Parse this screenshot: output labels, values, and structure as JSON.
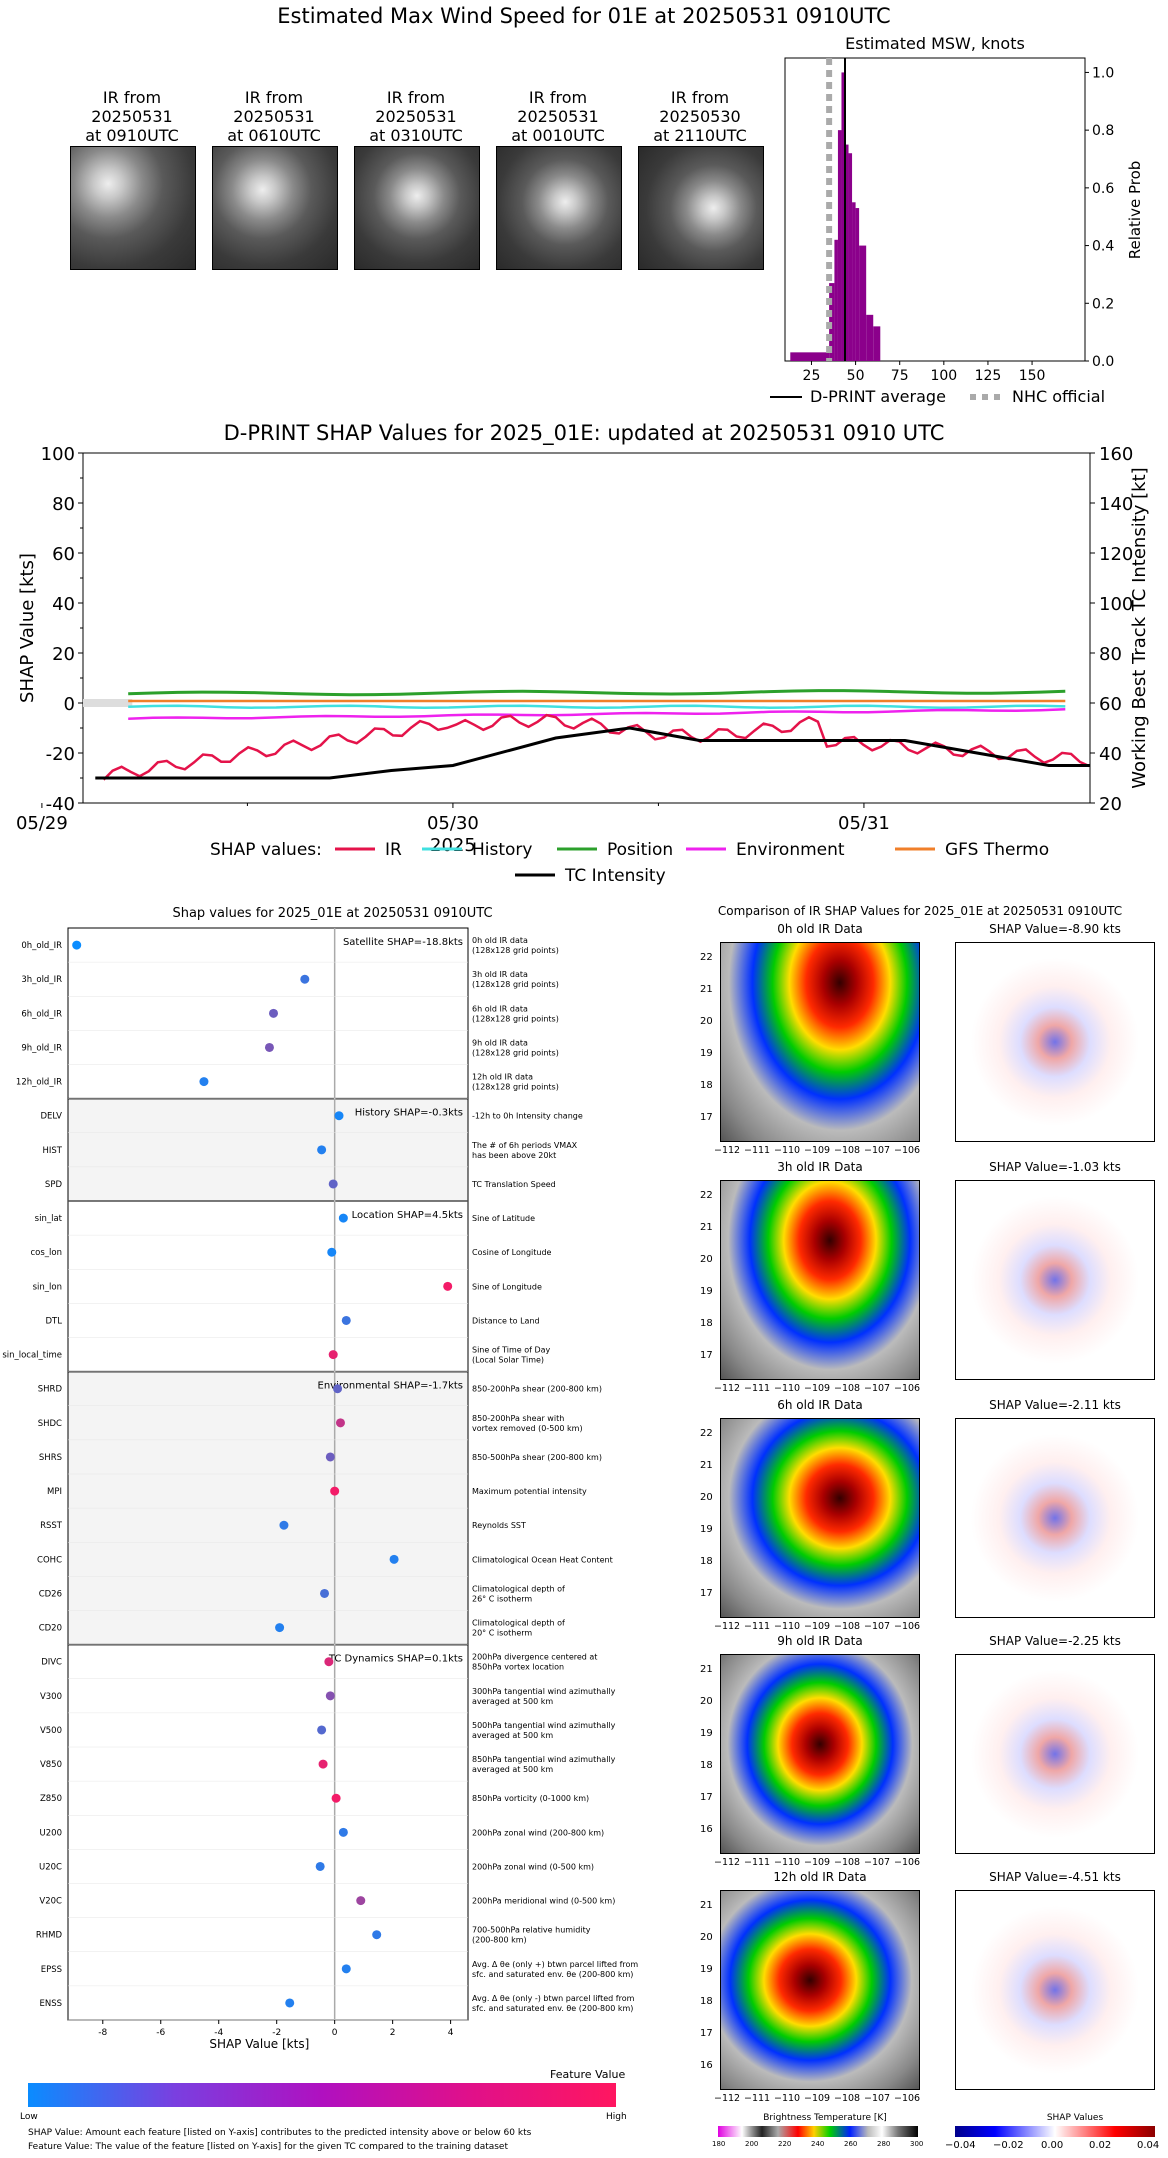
{
  "page_title": "Estimated Max Wind Speed for 01E at 20250531 0910UTC",
  "ir_thumbs": [
    {
      "line1": "IR from",
      "line2": "20250531",
      "line3": "at 0910UTC"
    },
    {
      "line1": "IR from",
      "line2": "20250531",
      "line3": "at 0610UTC"
    },
    {
      "line1": "IR from",
      "line2": "20250531",
      "line3": "at 0310UTC"
    },
    {
      "line1": "IR from",
      "line2": "20250531",
      "line3": "at 0010UTC"
    },
    {
      "line1": "IR from",
      "line2": "20250530",
      "line3": "at 2110UTC"
    }
  ],
  "msw": {
    "title": "Estimated MSW, knots",
    "ylabel": "Relative Prob",
    "xticks": [
      "25",
      "50",
      "75",
      "100",
      "125",
      "150"
    ],
    "yticks": [
      "0.0",
      "0.2",
      "0.4",
      "0.6",
      "0.8",
      "1.0"
    ],
    "legend_avg": "D-PRINT average",
    "legend_nhc": "NHC official",
    "colors": {
      "bars": "#8b008b",
      "avg": "#000000",
      "nhc": "#aaaaaa"
    }
  },
  "shap_ts": {
    "title": "D-PRINT SHAP Values for 2025_01E: updated at 20250531 0910 UTC",
    "ylabel_left": "SHAP Value [kts]",
    "ylabel_right": "Working Best Track TC Intensity [kt]",
    "xlabel": "2025",
    "xticks": [
      "05/29",
      "05/30",
      "05/31"
    ],
    "yticks_left": [
      "-40",
      "-20",
      "0",
      "20",
      "40",
      "60",
      "80",
      "100"
    ],
    "yticks_right": [
      "20",
      "40",
      "60",
      "80",
      "100",
      "120",
      "140",
      "160"
    ],
    "legend_heading": "SHAP values:",
    "legend": [
      "IR",
      "History",
      "Position",
      "Environment",
      "GFS Thermo",
      "TC Intensity"
    ],
    "colors": {
      "IR": "#e4134a",
      "History": "#40e0e0",
      "Position": "#2ca02c",
      "Environment": "#ee22ee",
      "GFS Thermo": "#f07f2a",
      "TC Intensity": "#000000"
    }
  },
  "feature_panel": {
    "title": "Shap values for 2025_01E at 20250531 0910UTC",
    "xlabel": "SHAP Value [kts]",
    "xticks": [
      "-8",
      "-6",
      "-4",
      "-2",
      "0",
      "2",
      "4"
    ],
    "groups": [
      {
        "label": "Satellite SHAP=-18.8kts"
      },
      {
        "label": "History SHAP=-0.3kts"
      },
      {
        "label": "Location SHAP=4.5kts"
      },
      {
        "label": "Environmental SHAP=-1.7kts"
      },
      {
        "label": "TC Dynamics SHAP=0.1kts"
      }
    ],
    "features": [
      {
        "name": "0h_old_IR",
        "desc1": "0h old IR data",
        "desc2": "(128x128 grid points)",
        "shap": -8.9,
        "fv": 0.0
      },
      {
        "name": "3h_old_IR",
        "desc1": "3h old IR data",
        "desc2": "(128x128 grid points)",
        "shap": -1.03,
        "fv": 0.2
      },
      {
        "name": "6h_old_IR",
        "desc1": "6h old IR data",
        "desc2": "(128x128 grid points)",
        "shap": -2.11,
        "fv": 0.4
      },
      {
        "name": "9h_old_IR",
        "desc1": "9h old IR data",
        "desc2": "(128x128 grid points)",
        "shap": -2.25,
        "fv": 0.45
      },
      {
        "name": "12h_old_IR",
        "desc1": "12h old IR data",
        "desc2": "(128x128 grid points)",
        "shap": -4.51,
        "fv": 0.1
      },
      {
        "name": "DELV",
        "desc1": "-12h to 0h Intensity change",
        "desc2": "",
        "shap": 0.15,
        "fv": 0.05
      },
      {
        "name": "HIST",
        "desc1": "The # of 6h periods VMAX",
        "desc2": "has been above 20kt",
        "shap": -0.45,
        "fv": 0.1
      },
      {
        "name": "SPD",
        "desc1": "TC Translation Speed",
        "desc2": "",
        "shap": -0.05,
        "fv": 0.35
      },
      {
        "name": "sin_lat",
        "desc1": "Sine of Latitude",
        "desc2": "",
        "shap": 0.3,
        "fv": 0.05
      },
      {
        "name": "cos_lon",
        "desc1": "Cosine of Longitude",
        "desc2": "",
        "shap": -0.1,
        "fv": 0.05
      },
      {
        "name": "sin_lon",
        "desc1": "Sine of Longitude",
        "desc2": "",
        "shap": 3.9,
        "fv": 0.95
      },
      {
        "name": "DTL",
        "desc1": "Distance to Land",
        "desc2": "",
        "shap": 0.4,
        "fv": 0.2
      },
      {
        "name": "sin_local_time",
        "desc1": "Sine of Time of Day",
        "desc2": "(Local Solar Time)",
        "shap": -0.05,
        "fv": 0.9
      },
      {
        "name": "SHRD",
        "desc1": "850-200hPa shear (200-800 km)",
        "desc2": "",
        "shap": 0.1,
        "fv": 0.35
      },
      {
        "name": "SHDC",
        "desc1": "850-200hPa shear with",
        "desc2": "vortex removed (0-500 km)",
        "shap": 0.2,
        "fv": 0.75
      },
      {
        "name": "SHRS",
        "desc1": "850-500hPa shear (200-800 km)",
        "desc2": "",
        "shap": -0.15,
        "fv": 0.4
      },
      {
        "name": "MPI",
        "desc1": "Maximum potential intensity",
        "desc2": "",
        "shap": 0.0,
        "fv": 0.95
      },
      {
        "name": "RSST",
        "desc1": "Reynolds SST",
        "desc2": "",
        "shap": -1.75,
        "fv": 0.15
      },
      {
        "name": "COHC",
        "desc1": "Climatological Ocean Heat Content",
        "desc2": "",
        "shap": 2.05,
        "fv": 0.1
      },
      {
        "name": "CD26",
        "desc1": "Climatological depth of",
        "desc2": "26° C isotherm",
        "shap": -0.35,
        "fv": 0.25
      },
      {
        "name": "CD20",
        "desc1": "Climatological depth of",
        "desc2": "20° C isotherm",
        "shap": -1.9,
        "fv": 0.1
      },
      {
        "name": "DIVC",
        "desc1": "200hPa divergence centered at",
        "desc2": "850hPa vortex location",
        "shap": -0.2,
        "fv": 0.85
      },
      {
        "name": "V300",
        "desc1": "300hPa tangential wind azimuthally",
        "desc2": "averaged at 500 km",
        "shap": -0.15,
        "fv": 0.5
      },
      {
        "name": "V500",
        "desc1": "500hPa tangential wind azimuthally",
        "desc2": "averaged at 500 km",
        "shap": -0.45,
        "fv": 0.3
      },
      {
        "name": "V850",
        "desc1": "850hPa tangential wind azimuthally",
        "desc2": "averaged at 500 km",
        "shap": -0.4,
        "fv": 0.9
      },
      {
        "name": "Z850",
        "desc1": "850hPa vorticity (0-1000 km)",
        "desc2": "",
        "shap": 0.05,
        "fv": 0.95
      },
      {
        "name": "U200",
        "desc1": "200hPa zonal wind (200-800 km)",
        "desc2": "",
        "shap": 0.3,
        "fv": 0.15
      },
      {
        "name": "U20C",
        "desc1": "200hPa zonal wind (0-500 km)",
        "desc2": "",
        "shap": -0.5,
        "fv": 0.15
      },
      {
        "name": "V20C",
        "desc1": "200hPa meridional wind (0-500 km)",
        "desc2": "",
        "shap": 0.9,
        "fv": 0.6
      },
      {
        "name": "RHMD",
        "desc1": "700-500hPa relative humidity",
        "desc2": "(200-800 km)",
        "shap": 1.45,
        "fv": 0.15
      },
      {
        "name": "EPSS",
        "desc1": "Avg. Δ θe (only +) btwn parcel lifted from",
        "desc2": "sfc. and saturated env. θe (200-800 km)",
        "shap": 0.4,
        "fv": 0.1
      },
      {
        "name": "ENSS",
        "desc1": "Avg. Δ θe (only -) btwn parcel lifted from",
        "desc2": "sfc. and saturated env. θe (200-800 km)",
        "shap": -1.55,
        "fv": 0.1
      }
    ],
    "colorbar_title": "Feature Value",
    "colorbar_low": "Low",
    "colorbar_high": "High",
    "footnote1": "SHAP Value: Amount each feature [listed on Y-axis] contributes to the predicted intensity above or below 60 kts",
    "footnote2": "Feature Value: The value of the feature [listed on Y-axis] for the given TC compared to the training dataset"
  },
  "ir_compare": {
    "title": "Comparison of IR SHAP Values for 2025_01E at 20250531 0910UTC",
    "rows": [
      {
        "ir_title": "0h old IR Data",
        "shap_title": "SHAP Value=-8.90 kts",
        "yticks": [
          "22",
          "21",
          "20",
          "19",
          "18",
          "17"
        ]
      },
      {
        "ir_title": "3h old IR Data",
        "shap_title": "SHAP Value=-1.03 kts",
        "yticks": [
          "22",
          "21",
          "20",
          "19",
          "18",
          "17"
        ]
      },
      {
        "ir_title": "6h old IR Data",
        "shap_title": "SHAP Value=-2.11 kts",
        "yticks": [
          "22",
          "21",
          "20",
          "19",
          "18",
          "17"
        ]
      },
      {
        "ir_title": "9h old IR Data",
        "shap_title": "SHAP Value=-2.25 kts",
        "yticks": [
          "21",
          "20",
          "19",
          "18",
          "17",
          "16"
        ]
      },
      {
        "ir_title": "12h old IR Data",
        "shap_title": "SHAP Value=-4.51 kts",
        "yticks": [
          "21",
          "20",
          "19",
          "18",
          "17",
          "16"
        ]
      }
    ],
    "xticks": [
      "−112",
      "−111",
      "−110",
      "−109",
      "−108",
      "−107",
      "−106"
    ],
    "bt_title": "Brightness Temperature [K]",
    "bt_ticks": [
      "180",
      "200",
      "220",
      "240",
      "260",
      "280",
      "300"
    ],
    "sv_title": "SHAP Values",
    "sv_ticks": [
      "−0.04",
      "−0.02",
      "0.00",
      "0.02",
      "0.04"
    ]
  }
}
